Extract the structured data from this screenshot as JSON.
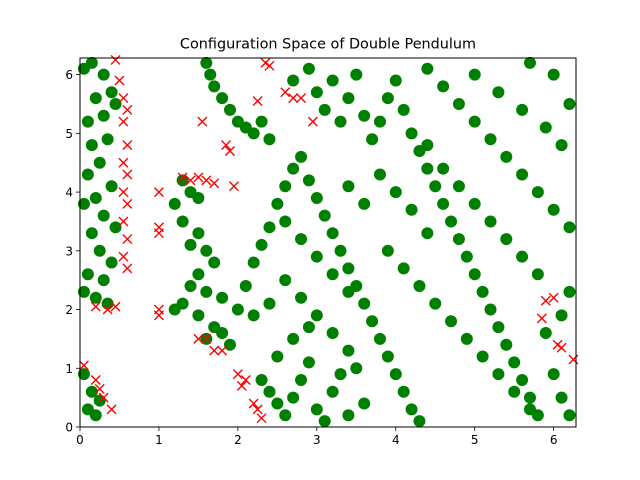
{
  "chart_data": {
    "type": "scatter",
    "title": "Configuration Space of Double Pendulum",
    "xlabel": "",
    "ylabel": "",
    "xlim": [
      0,
      6.283
    ],
    "ylim": [
      0,
      6.283
    ],
    "grid": false,
    "legend": "none",
    "x_ticks": [
      "0",
      "1",
      "2",
      "3",
      "4",
      "5",
      "6"
    ],
    "y_ticks": [
      "0",
      "1",
      "2",
      "3",
      "4",
      "5",
      "6"
    ],
    "colors": {
      "valid": "#008000",
      "collision": "#ff0000"
    },
    "series": [
      {
        "marker": "circle",
        "color": "#008000",
        "points": [
          [
            0.05,
            6.1
          ],
          [
            0.15,
            6.2
          ],
          [
            0.3,
            6.0
          ],
          [
            0.4,
            5.7
          ],
          [
            0.2,
            5.6
          ],
          [
            0.1,
            5.2
          ],
          [
            0.3,
            5.3
          ],
          [
            0.45,
            5.5
          ],
          [
            0.15,
            4.8
          ],
          [
            0.35,
            4.9
          ],
          [
            0.25,
            4.5
          ],
          [
            0.1,
            4.3
          ],
          [
            0.4,
            4.1
          ],
          [
            0.2,
            3.9
          ],
          [
            0.05,
            3.8
          ],
          [
            0.3,
            3.6
          ],
          [
            0.45,
            3.4
          ],
          [
            0.15,
            3.3
          ],
          [
            0.25,
            3.0
          ],
          [
            0.4,
            2.8
          ],
          [
            0.1,
            2.6
          ],
          [
            0.3,
            2.5
          ],
          [
            0.05,
            2.3
          ],
          [
            0.2,
            2.2
          ],
          [
            0.35,
            2.1
          ],
          [
            0.05,
            0.9
          ],
          [
            0.15,
            0.6
          ],
          [
            0.1,
            0.3
          ],
          [
            0.2,
            0.2
          ],
          [
            0.25,
            0.45
          ],
          [
            1.6,
            6.2
          ],
          [
            1.65,
            6.0
          ],
          [
            1.7,
            5.8
          ],
          [
            1.8,
            5.6
          ],
          [
            1.9,
            5.4
          ],
          [
            2.0,
            5.2
          ],
          [
            2.1,
            5.1
          ],
          [
            2.2,
            5.0
          ],
          [
            2.3,
            5.2
          ],
          [
            2.4,
            4.9
          ],
          [
            1.3,
            4.2
          ],
          [
            1.4,
            4.0
          ],
          [
            1.5,
            3.9
          ],
          [
            1.2,
            3.8
          ],
          [
            1.3,
            3.5
          ],
          [
            1.5,
            3.3
          ],
          [
            1.4,
            3.1
          ],
          [
            1.6,
            3.0
          ],
          [
            1.7,
            2.8
          ],
          [
            1.5,
            2.6
          ],
          [
            1.4,
            2.4
          ],
          [
            1.6,
            2.3
          ],
          [
            1.8,
            2.2
          ],
          [
            1.3,
            2.1
          ],
          [
            1.2,
            2.0
          ],
          [
            1.5,
            1.9
          ],
          [
            1.7,
            1.7
          ],
          [
            1.6,
            1.5
          ],
          [
            1.8,
            1.6
          ],
          [
            1.9,
            1.4
          ],
          [
            2.0,
            2.0
          ],
          [
            2.1,
            2.4
          ],
          [
            2.2,
            2.8
          ],
          [
            2.3,
            3.1
          ],
          [
            2.4,
            3.4
          ],
          [
            2.5,
            3.8
          ],
          [
            2.6,
            4.1
          ],
          [
            2.7,
            4.4
          ],
          [
            2.8,
            4.6
          ],
          [
            2.9,
            4.2
          ],
          [
            3.0,
            3.9
          ],
          [
            3.1,
            3.6
          ],
          [
            3.2,
            3.3
          ],
          [
            3.3,
            3.0
          ],
          [
            3.4,
            2.7
          ],
          [
            3.5,
            2.4
          ],
          [
            3.6,
            2.1
          ],
          [
            3.7,
            1.8
          ],
          [
            3.8,
            1.5
          ],
          [
            3.9,
            1.2
          ],
          [
            4.0,
            0.9
          ],
          [
            4.1,
            0.6
          ],
          [
            4.2,
            0.3
          ],
          [
            4.3,
            0.1
          ],
          [
            2.3,
            0.8
          ],
          [
            2.4,
            0.6
          ],
          [
            2.5,
            0.4
          ],
          [
            2.6,
            0.2
          ],
          [
            2.7,
            0.5
          ],
          [
            2.8,
            0.8
          ],
          [
            2.9,
            1.1
          ],
          [
            3.0,
            0.3
          ],
          [
            3.1,
            0.1
          ],
          [
            3.2,
            0.6
          ],
          [
            3.3,
            0.9
          ],
          [
            3.4,
            0.2
          ],
          [
            3.5,
            1.0
          ],
          [
            3.6,
            0.4
          ],
          [
            2.7,
            5.9
          ],
          [
            2.9,
            6.1
          ],
          [
            3.0,
            5.7
          ],
          [
            3.1,
            5.4
          ],
          [
            3.2,
            5.9
          ],
          [
            3.3,
            5.2
          ],
          [
            3.4,
            5.6
          ],
          [
            3.5,
            6.0
          ],
          [
            3.6,
            5.3
          ],
          [
            3.7,
            4.9
          ],
          [
            3.8,
            5.2
          ],
          [
            3.9,
            5.6
          ],
          [
            4.0,
            5.9
          ],
          [
            4.1,
            5.4
          ],
          [
            4.2,
            5.0
          ],
          [
            4.3,
            4.7
          ],
          [
            4.4,
            4.4
          ],
          [
            4.5,
            4.1
          ],
          [
            4.6,
            3.8
          ],
          [
            4.7,
            3.5
          ],
          [
            4.8,
            3.2
          ],
          [
            4.9,
            2.9
          ],
          [
            5.0,
            2.6
          ],
          [
            5.1,
            2.3
          ],
          [
            5.2,
            2.0
          ],
          [
            5.3,
            1.7
          ],
          [
            5.4,
            1.4
          ],
          [
            5.5,
            1.1
          ],
          [
            5.6,
            0.8
          ],
          [
            5.7,
            0.5
          ],
          [
            5.8,
            0.2
          ],
          [
            4.4,
            6.1
          ],
          [
            4.6,
            5.8
          ],
          [
            4.8,
            5.5
          ],
          [
            5.0,
            5.2
          ],
          [
            5.2,
            4.9
          ],
          [
            5.4,
            4.6
          ],
          [
            5.6,
            4.3
          ],
          [
            5.8,
            4.0
          ],
          [
            6.0,
            3.7
          ],
          [
            6.2,
            3.4
          ],
          [
            5.0,
            6.0
          ],
          [
            5.3,
            5.7
          ],
          [
            5.6,
            5.4
          ],
          [
            5.9,
            5.1
          ],
          [
            6.1,
            4.8
          ],
          [
            6.2,
            5.5
          ],
          [
            6.0,
            6.0
          ],
          [
            5.7,
            6.2
          ],
          [
            3.4,
            4.1
          ],
          [
            3.6,
            3.8
          ],
          [
            3.8,
            4.3
          ],
          [
            4.0,
            4.0
          ],
          [
            4.2,
            3.7
          ],
          [
            4.4,
            3.3
          ],
          [
            3.9,
            3.0
          ],
          [
            4.1,
            2.7
          ],
          [
            4.3,
            2.4
          ],
          [
            4.5,
            2.1
          ],
          [
            4.7,
            1.8
          ],
          [
            4.9,
            1.5
          ],
          [
            5.1,
            1.2
          ],
          [
            5.3,
            0.9
          ],
          [
            5.5,
            0.6
          ],
          [
            5.7,
            0.3
          ],
          [
            6.0,
            0.9
          ],
          [
            6.1,
            0.5
          ],
          [
            6.2,
            0.2
          ],
          [
            5.9,
            1.6
          ],
          [
            6.1,
            1.9
          ],
          [
            6.2,
            2.3
          ],
          [
            5.8,
            2.6
          ],
          [
            5.6,
            2.9
          ],
          [
            5.4,
            3.2
          ],
          [
            5.2,
            3.5
          ],
          [
            5.0,
            3.8
          ],
          [
            4.8,
            4.1
          ],
          [
            4.6,
            4.4
          ],
          [
            4.4,
            4.8
          ],
          [
            2.6,
            2.5
          ],
          [
            2.8,
            2.2
          ],
          [
            3.0,
            1.9
          ],
          [
            3.2,
            1.6
          ],
          [
            3.4,
            1.3
          ],
          [
            2.5,
            1.2
          ],
          [
            2.7,
            1.5
          ],
          [
            2.9,
            1.7
          ],
          [
            2.2,
            1.9
          ],
          [
            2.4,
            2.1
          ],
          [
            2.6,
            3.5
          ],
          [
            2.8,
            3.2
          ],
          [
            3.0,
            2.9
          ],
          [
            3.2,
            2.6
          ],
          [
            3.4,
            2.3
          ]
        ]
      },
      {
        "marker": "x",
        "color": "#ff0000",
        "points": [
          [
            0.45,
            6.25
          ],
          [
            0.5,
            5.9
          ],
          [
            0.55,
            5.6
          ],
          [
            0.6,
            5.4
          ],
          [
            0.55,
            5.2
          ],
          [
            0.6,
            4.8
          ],
          [
            0.55,
            4.5
          ],
          [
            0.6,
            4.3
          ],
          [
            0.55,
            4.0
          ],
          [
            0.6,
            3.8
          ],
          [
            0.55,
            3.5
          ],
          [
            0.6,
            3.2
          ],
          [
            0.55,
            2.9
          ],
          [
            0.6,
            2.7
          ],
          [
            0.35,
            2.0
          ],
          [
            0.2,
            2.05
          ],
          [
            0.45,
            2.05
          ],
          [
            0.05,
            1.05
          ],
          [
            0.2,
            0.8
          ],
          [
            0.25,
            0.65
          ],
          [
            0.3,
            0.5
          ],
          [
            0.4,
            0.3
          ],
          [
            1.0,
            4.0
          ],
          [
            1.0,
            3.4
          ],
          [
            1.0,
            3.3
          ],
          [
            1.0,
            2.0
          ],
          [
            1.0,
            1.9
          ],
          [
            1.3,
            4.25
          ],
          [
            1.4,
            4.2
          ],
          [
            1.5,
            4.25
          ],
          [
            1.6,
            4.2
          ],
          [
            1.7,
            4.15
          ],
          [
            1.55,
            5.2
          ],
          [
            1.5,
            1.5
          ],
          [
            1.6,
            1.5
          ],
          [
            1.7,
            1.3
          ],
          [
            1.8,
            1.3
          ],
          [
            1.85,
            4.8
          ],
          [
            1.9,
            4.7
          ],
          [
            1.95,
            4.1
          ],
          [
            2.25,
            5.55
          ],
          [
            2.0,
            0.9
          ],
          [
            2.05,
            0.7
          ],
          [
            2.1,
            0.8
          ],
          [
            2.2,
            0.4
          ],
          [
            2.25,
            0.3
          ],
          [
            2.3,
            0.15
          ],
          [
            2.35,
            6.2
          ],
          [
            2.4,
            6.15
          ],
          [
            2.6,
            5.7
          ],
          [
            2.7,
            5.6
          ],
          [
            2.8,
            5.6
          ],
          [
            2.95,
            5.2
          ],
          [
            5.85,
            1.85
          ],
          [
            5.9,
            2.15
          ],
          [
            6.0,
            2.2
          ],
          [
            6.05,
            1.4
          ],
          [
            6.1,
            1.35
          ],
          [
            6.25,
            1.15
          ]
        ]
      }
    ]
  }
}
